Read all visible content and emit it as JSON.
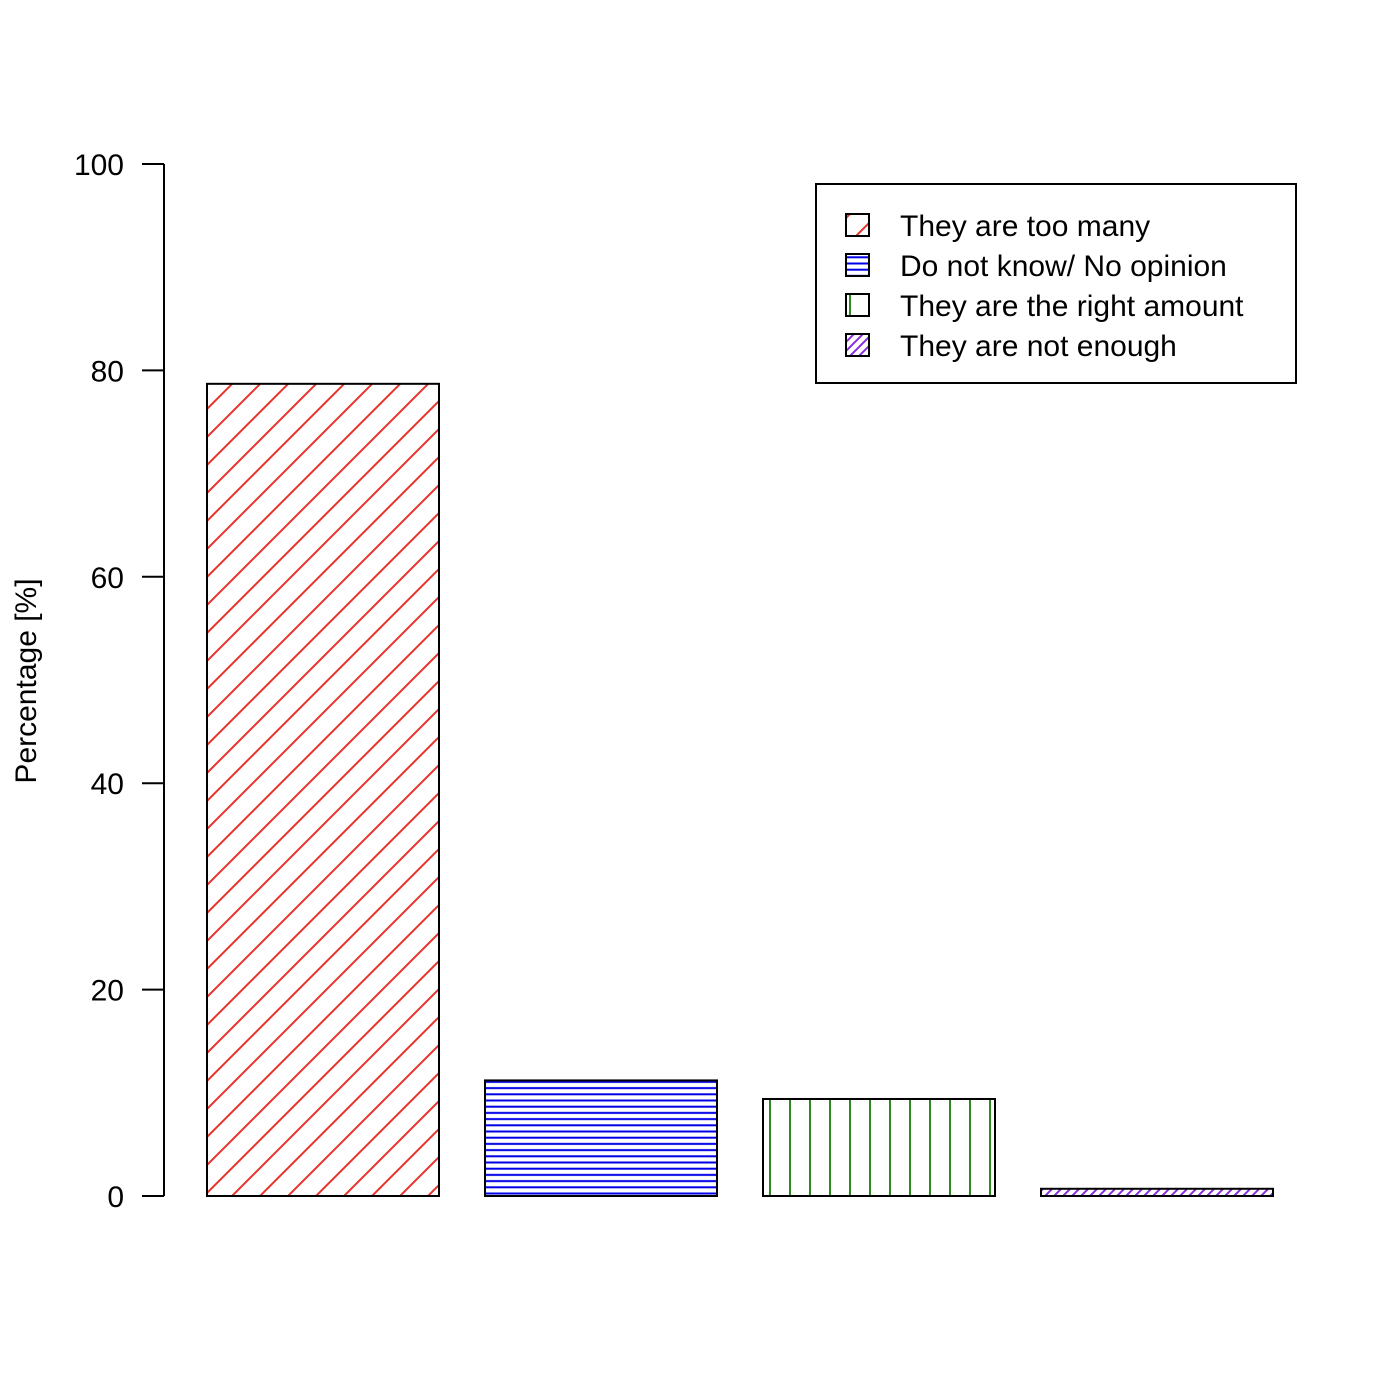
{
  "chart_data": {
    "type": "bar",
    "ylabel": "Percentage [%]",
    "ylim": [
      0,
      100
    ],
    "yticks": [
      0,
      20,
      40,
      60,
      80,
      100
    ],
    "grid": false,
    "legend_position": "top-right",
    "bars": [
      {
        "name": "They are too many",
        "value": 78.7,
        "color": "#e8312a",
        "pattern": "diagonal-wide"
      },
      {
        "name": "Do not know/ No opinion",
        "value": 11.2,
        "color": "#0000e6",
        "pattern": "horizontal"
      },
      {
        "name": "They are the right amount",
        "value": 9.4,
        "color": "#2a8a1e",
        "pattern": "vertical"
      },
      {
        "name": "They are not enough",
        "value": 0.7,
        "color": "#8a2be2",
        "pattern": "diagonal-dense"
      }
    ]
  }
}
